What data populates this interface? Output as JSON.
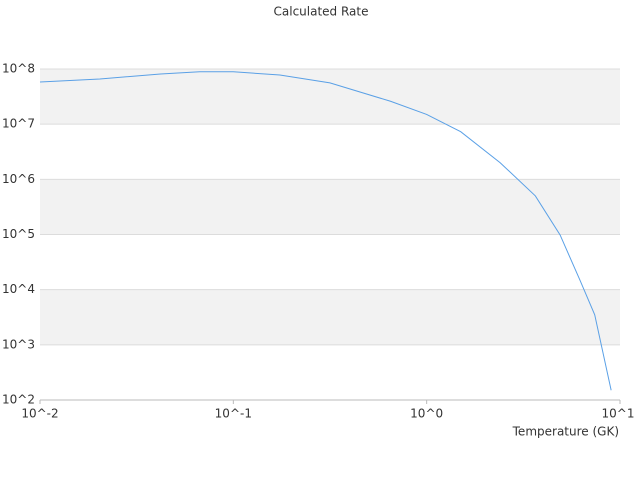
{
  "chart_data": {
    "type": "line",
    "title": "Calculated Rate",
    "xlabel": "Temperature (GK)",
    "x": [
      0.01,
      0.0204,
      0.042,
      0.067,
      0.1,
      0.174,
      0.316,
      0.65,
      1.0,
      1.5,
      2.4,
      3.65,
      4.9,
      6.2,
      7.4,
      9.0
    ],
    "series": [
      {
        "color": "#5aa0e6",
        "values": [
          58000000,
          66000000,
          81000000,
          89000000,
          89000000,
          78000000,
          56000000,
          26000000,
          15000000,
          7300000,
          2000000,
          500000,
          98000,
          15000,
          3500,
          150
        ]
      }
    ],
    "xscale": "log",
    "yscale": "log",
    "xlim": [
      0.01,
      10
    ],
    "ylim": [
      100,
      100000000
    ],
    "xticks": [
      {
        "value": 0.01,
        "label": "10^-2"
      },
      {
        "value": 0.1,
        "label": "10^-1"
      },
      {
        "value": 1,
        "label": "10^0"
      },
      {
        "value": 10,
        "label": "10^1"
      }
    ],
    "yticks": [
      {
        "value": 100,
        "label": "10^2"
      },
      {
        "value": 1000,
        "label": "10^3"
      },
      {
        "value": 10000,
        "label": "10^4"
      },
      {
        "value": 100000,
        "label": "10^5"
      },
      {
        "value": 1000000,
        "label": "10^6"
      },
      {
        "value": 10000000,
        "label": "10^7"
      },
      {
        "value": 100000000,
        "label": "10^8"
      }
    ],
    "grid": true
  }
}
